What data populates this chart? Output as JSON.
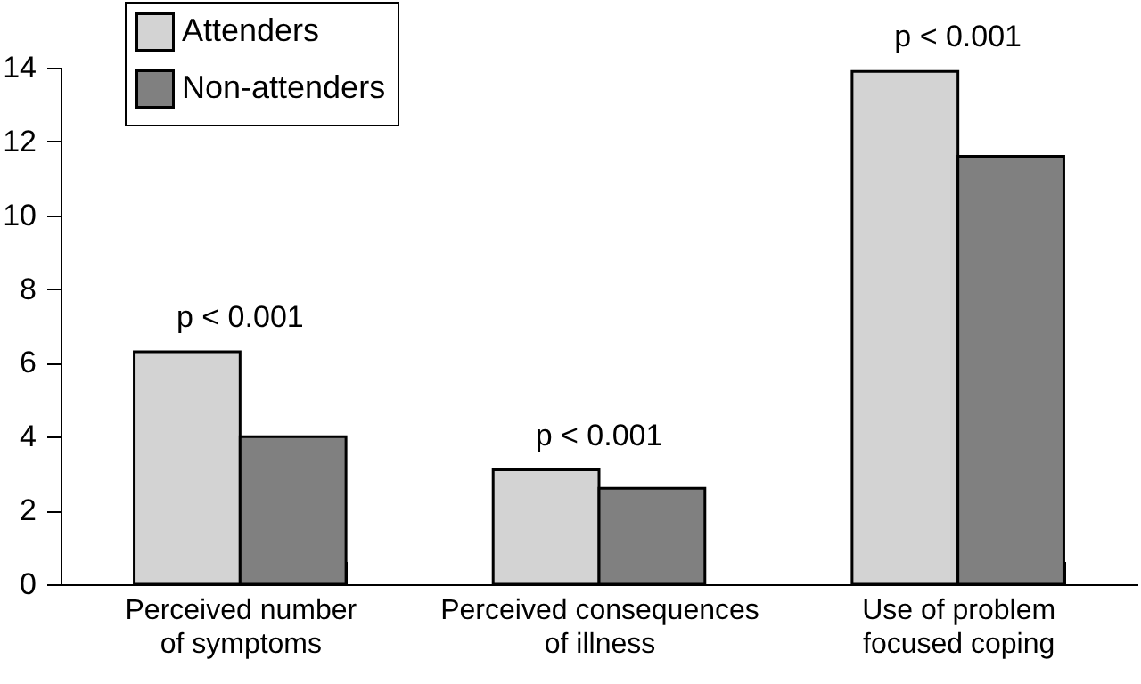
{
  "chart_data": {
    "type": "bar",
    "categories": [
      "Perceived number of symptoms",
      "Perceived consequences of illness",
      "Use of problem focused coping"
    ],
    "series": [
      {
        "name": "Attenders",
        "color": "#d3d3d3",
        "values": [
          6.3,
          3.1,
          13.9
        ]
      },
      {
        "name": "Non-attenders",
        "color": "#808080",
        "values": [
          4.0,
          2.6,
          11.6
        ]
      }
    ],
    "ylim": [
      0,
      14
    ],
    "yticks": [
      0,
      2,
      4,
      6,
      8,
      10,
      12,
      14
    ],
    "grid": false,
    "legend": "top left",
    "annotations": [
      {
        "text": "p < 0.001",
        "x": "Perceived number of symptoms",
        "y": 6.3
      },
      {
        "text": "p < 0.001",
        "x": "Perceived consequences of illness",
        "y": 3.1
      },
      {
        "text": "p < 0.001",
        "x": "Use of problem focused coping",
        "y": 13.9
      }
    ]
  }
}
